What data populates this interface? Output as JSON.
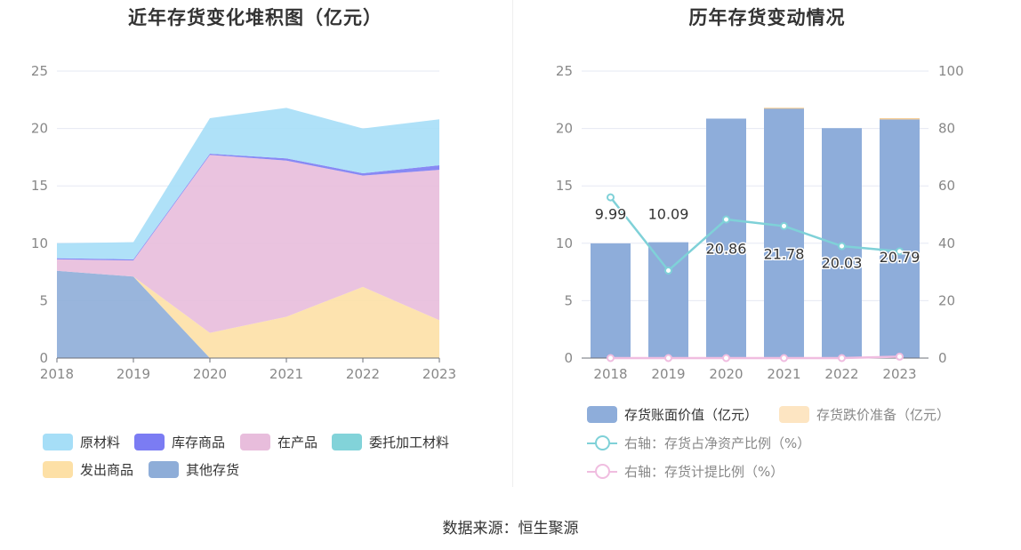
{
  "source_text": "数据来源：恒生聚源",
  "colors": {
    "raw": "#a6def7",
    "stock": "#7b7cf3",
    "wip": "#e8bddc",
    "outsourced": "#82d3d9",
    "shipped": "#fde0a6",
    "other": "#8eadd8",
    "bar": "#8eadda",
    "impair": "#fde5c2",
    "ratio_line": "#7fd1d8",
    "provision_line": "#f0bde0"
  },
  "chart_data": [
    {
      "type": "area",
      "title": "近年存货变化堆积图（亿元）",
      "categories": [
        "2018",
        "2019",
        "2020",
        "2021",
        "2022",
        "2023"
      ],
      "ylim": [
        0,
        25
      ],
      "yticks": [
        0,
        5,
        10,
        15,
        20,
        25
      ],
      "stacked": true,
      "grid": true,
      "legend_position": "bottom",
      "series": [
        {
          "name": "其他存货",
          "values": [
            7.6,
            7.1,
            0,
            0,
            0,
            0
          ]
        },
        {
          "name": "发出商品",
          "values": [
            0,
            0,
            2.2,
            3.6,
            6.2,
            3.3
          ]
        },
        {
          "name": "委托加工材料",
          "values": [
            0,
            0,
            0,
            0,
            0,
            0
          ]
        },
        {
          "name": "在产品",
          "values": [
            1.0,
            1.4,
            15.5,
            13.6,
            9.7,
            13.1
          ]
        },
        {
          "name": "库存商品",
          "values": [
            0.1,
            0.1,
            0.1,
            0.2,
            0.2,
            0.4
          ]
        },
        {
          "name": "原材料",
          "values": [
            1.3,
            1.5,
            3.1,
            4.4,
            3.9,
            4.0
          ]
        }
      ],
      "legend": [
        "原材料",
        "库存商品",
        "在产品",
        "委托加工材料",
        "发出商品",
        "其他存货"
      ]
    },
    {
      "type": "bar",
      "title": "历年存货变动情况",
      "categories": [
        "2018",
        "2019",
        "2020",
        "2021",
        "2022",
        "2023"
      ],
      "ylim": [
        0,
        25
      ],
      "yticks": [
        0,
        5,
        10,
        15,
        20,
        25
      ],
      "y2lim": [
        0,
        100
      ],
      "y2ticks": [
        0,
        20,
        40,
        60,
        80,
        100
      ],
      "grid": true,
      "legend_position": "bottom",
      "series": [
        {
          "name": "存货账面价值（亿元）",
          "type": "bar",
          "axis": "left",
          "values": [
            9.99,
            10.09,
            20.86,
            21.78,
            20.03,
            20.79
          ],
          "labels": [
            "9.99",
            "10.09",
            "20.86",
            "21.78",
            "20.03",
            "20.79"
          ]
        },
        {
          "name": "存货跌价准备（亿元）",
          "type": "bar",
          "axis": "left",
          "values": [
            0,
            0,
            0,
            0.02,
            0,
            0.1
          ]
        },
        {
          "name": "右轴：存货占净资产比例（%）",
          "type": "line",
          "axis": "right",
          "values": [
            56.0,
            30.5,
            48.3,
            46.0,
            39.0,
            37.2
          ]
        },
        {
          "name": "右轴：存货计提比例（%）",
          "type": "line",
          "axis": "right",
          "values": [
            0,
            0,
            0,
            0,
            0,
            0.5
          ]
        }
      ]
    }
  ]
}
